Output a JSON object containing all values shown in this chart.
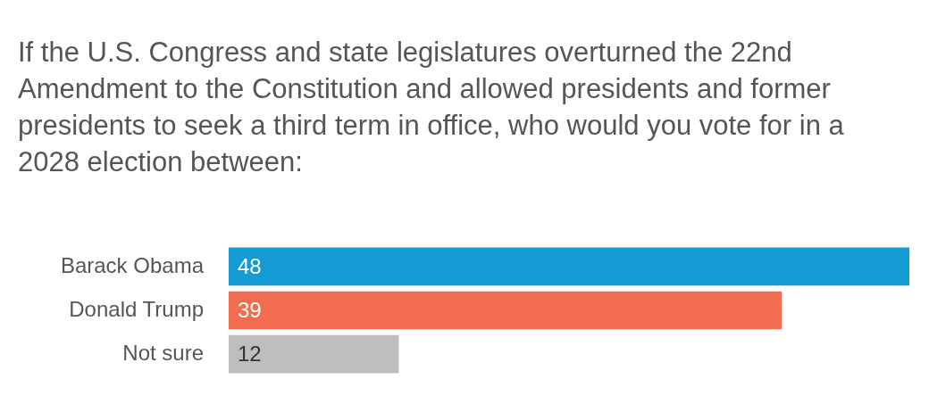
{
  "chart_data": {
    "type": "bar",
    "orientation": "horizontal",
    "title": "If the U.S. Congress and state legislatures overturned the 22nd Amendment to the Constitution and allowed presidents and former presidents to seek a third term in office, who would you vote for in a 2028 election between:",
    "categories": [
      "Barack Obama",
      "Donald Trump",
      "Not sure"
    ],
    "values": [
      48,
      39,
      12
    ],
    "colors": [
      "#159bd3",
      "#f26c50",
      "#bcbdbf"
    ],
    "xlim": [
      0,
      48
    ],
    "tick_labels": "y",
    "legend": false,
    "data_labels": true
  }
}
